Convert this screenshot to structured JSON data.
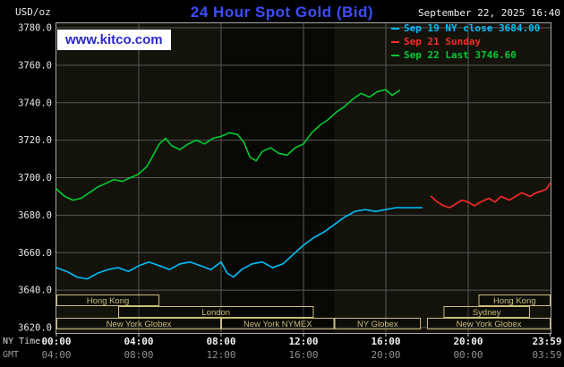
{
  "colors": {
    "background": "#000000",
    "plot_bg": "#13130b",
    "nymex_band": "rgba(0,0,0,0.55)",
    "grid": "#585858",
    "border": "#a8a8a8",
    "title": "#3d4eff",
    "logo_blue": "#2929c8",
    "logo_bg": "#ffffff",
    "session": "#cdbd7d",
    "axis_text": "#e8e8e8",
    "gmt_text": "#909090"
  },
  "header": {
    "unit": "USD/oz",
    "title": "24 Hour Spot Gold (Bid)",
    "datetime": "September 22, 2025 16:40",
    "logo_text": "www.kitco.com"
  },
  "legend": [
    {
      "label": "Sep 19 NY close 3684.00",
      "color": "#00bfff"
    },
    {
      "label": "Sep 21 Sunday",
      "color": "#ff2a2a"
    },
    {
      "label": "Sep 22 Last 3746.60",
      "color": "#00cc33"
    }
  ],
  "axis": {
    "ny_row_label": "NY Time",
    "gmt_row_label": "GMT",
    "y_ticks": [
      "3780.0",
      "3760.0",
      "3740.0",
      "3720.0",
      "3700.0",
      "3680.0",
      "3660.0",
      "3640.0",
      "3620.0"
    ],
    "x_ticks": [
      {
        "hour": 0,
        "ny": "00:00",
        "gmt": "04:00"
      },
      {
        "hour": 4,
        "ny": "04:00",
        "gmt": "08:00"
      },
      {
        "hour": 8,
        "ny": "08:00",
        "gmt": "12:00"
      },
      {
        "hour": 12,
        "ny": "12:00",
        "gmt": "16:00"
      },
      {
        "hour": 16,
        "ny": "16:00",
        "gmt": "20:00"
      },
      {
        "hour": 20,
        "ny": "20:00",
        "gmt": "00:00"
      },
      {
        "hour": 23.983,
        "ny": "23:59",
        "gmt": "03:59"
      }
    ]
  },
  "sessions": [
    {
      "label": "Hong Kong",
      "row": 0,
      "start": 0,
      "end": 5
    },
    {
      "label": "Hong Kong",
      "row": 0,
      "start": 20.5,
      "end": 24
    },
    {
      "label": "London",
      "row": 1,
      "start": 3,
      "end": 12.5
    },
    {
      "label": "Sydney",
      "row": 1,
      "start": 18.8,
      "end": 23.0
    },
    {
      "label": "New York Globex",
      "row": 2,
      "start": 0,
      "end": 8
    },
    {
      "label": "New York NYMEX",
      "row": 2,
      "start": 8,
      "end": 13.5
    },
    {
      "label": "NY Globex",
      "row": 2,
      "start": 13.5,
      "end": 17.7
    },
    {
      "label": "New York Globex",
      "row": 2,
      "start": 18,
      "end": 24
    }
  ],
  "plot": {
    "nymex_highlight": {
      "start": 8,
      "end": 13.5
    }
  },
  "chart_data": {
    "type": "line",
    "title": "24 Hour Spot Gold (Bid)",
    "ylabel": "USD/oz",
    "xlabel": "NY Time (hours 00:00-23:59)",
    "ylim": [
      3620,
      3780
    ],
    "xlim": [
      0,
      24
    ],
    "grid": true,
    "legend_position": "top-right",
    "series": [
      {
        "id": "sep19",
        "name": "Sep 19 NY close 3684.00",
        "color": "#00bfff",
        "close": 3684.0,
        "x": [
          0,
          0.5,
          1,
          1.5,
          2,
          2.5,
          3,
          3.5,
          4,
          4.5,
          5,
          5.5,
          6,
          6.5,
          7,
          7.5,
          8,
          8.3,
          8.6,
          9,
          9.5,
          10,
          10.5,
          11,
          11.5,
          12,
          12.5,
          13,
          13.5,
          14,
          14.5,
          15,
          15.5,
          16,
          16.5,
          17,
          17.75
        ],
        "y": [
          3652,
          3650,
          3647,
          3646,
          3649,
          3651,
          3652,
          3650,
          3653,
          3655,
          3653,
          3651,
          3654,
          3655,
          3653,
          3651,
          3655,
          3649,
          3647,
          3651,
          3654,
          3655,
          3652,
          3654,
          3659,
          3664,
          3668,
          3671,
          3675,
          3679,
          3682,
          3683,
          3682,
          3683,
          3684,
          3684,
          3684
        ]
      },
      {
        "id": "sep21",
        "name": "Sep 21 Sunday",
        "color": "#ff2a2a",
        "x": [
          18.2,
          18.5,
          18.8,
          19.1,
          19.4,
          19.7,
          20,
          20.3,
          20.6,
          21,
          21.3,
          21.6,
          22,
          22.3,
          22.6,
          23,
          23.3,
          23.6,
          23.8,
          23.98
        ],
        "y": [
          3690,
          3687,
          3685,
          3684,
          3686,
          3688,
          3687,
          3685,
          3687,
          3689,
          3687,
          3690,
          3688,
          3690,
          3692,
          3690,
          3692,
          3693,
          3694,
          3697
        ]
      },
      {
        "id": "sep22",
        "name": "Sep 22 Last 3746.60",
        "color": "#00cc33",
        "last": 3746.6,
        "x": [
          0,
          0.4,
          0.8,
          1.2,
          1.6,
          2,
          2.4,
          2.8,
          3.2,
          3.6,
          4,
          4.4,
          4.7,
          5,
          5.3,
          5.6,
          6,
          6.4,
          6.8,
          7.2,
          7.6,
          8,
          8.4,
          8.8,
          9.1,
          9.4,
          9.7,
          10,
          10.4,
          10.8,
          11.2,
          11.6,
          12,
          12.4,
          12.8,
          13.2,
          13.6,
          14,
          14.4,
          14.8,
          15.2,
          15.6,
          16,
          16.3,
          16.67
        ],
        "y": [
          3694,
          3690,
          3688,
          3689,
          3692,
          3695,
          3697,
          3699,
          3698,
          3700,
          3702,
          3706,
          3712,
          3718,
          3721,
          3717,
          3715,
          3718,
          3720,
          3718,
          3721,
          3722,
          3724,
          3723,
          3719,
          3711,
          3709,
          3714,
          3716,
          3713,
          3712,
          3716,
          3718,
          3724,
          3728,
          3731,
          3735,
          3738,
          3742,
          3745,
          3743,
          3746,
          3747,
          3744,
          3746.6
        ]
      }
    ]
  }
}
